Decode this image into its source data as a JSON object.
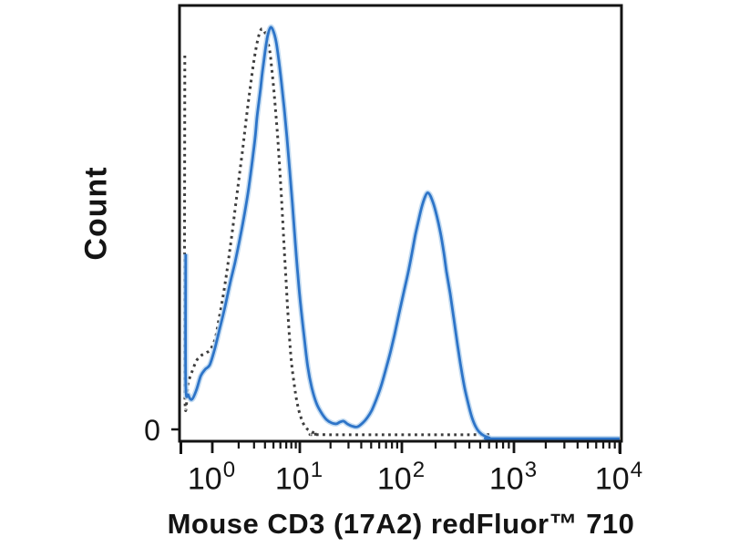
{
  "figure": {
    "y_axis": {
      "label": "Count",
      "zero_tick_label": "0"
    },
    "x_axis": {
      "label": "Mouse CD3 (17A2) redFluor™ 710",
      "tick_base": "10",
      "tick_exponents": [
        "0",
        "1",
        "2",
        "3",
        "4"
      ]
    },
    "colors": {
      "curve_solid": "#2d74c8",
      "curve_solid_halo": "#b9d5ee",
      "curve_dotted": "#3d3d3d",
      "axis": "#141414"
    }
  },
  "chart_data": {
    "type": "line",
    "subtype": "flow-cytometry-histogram-overlay",
    "title": "",
    "xlabel": "Mouse CD3 (17A2) redFluor™ 710",
    "ylabel": "Count",
    "x_scale": "log",
    "x_range": [
      0.45,
      11000
    ],
    "x_ticks": [
      1,
      10,
      100,
      1000,
      10000
    ],
    "y_range_normalized": [
      0,
      1
    ],
    "y_tick_labels": [
      "0"
    ],
    "grid": false,
    "legend": "none",
    "series": [
      {
        "name": "solid_blue_curve",
        "style": "solid",
        "color": "#2d74c8",
        "points": [
          [
            0.487,
            0.43
          ],
          [
            0.487,
            0.134
          ],
          [
            0.523,
            0.106
          ],
          [
            0.576,
            0.096
          ],
          [
            0.649,
            0.117
          ],
          [
            0.732,
            0.15
          ],
          [
            0.825,
            0.165
          ],
          [
            0.931,
            0.175
          ],
          [
            1.05,
            0.207
          ],
          [
            1.18,
            0.248
          ],
          [
            1.37,
            0.301
          ],
          [
            1.58,
            0.359
          ],
          [
            1.82,
            0.411
          ],
          [
            2.1,
            0.472
          ],
          [
            2.37,
            0.53
          ],
          [
            2.61,
            0.582
          ],
          [
            2.87,
            0.645
          ],
          [
            3.09,
            0.697
          ],
          [
            3.24,
            0.743
          ],
          [
            3.4,
            0.777
          ],
          [
            3.57,
            0.812
          ],
          [
            3.74,
            0.848
          ],
          [
            3.93,
            0.881
          ],
          [
            4.12,
            0.91
          ],
          [
            4.32,
            0.933
          ],
          [
            4.64,
            0.95
          ],
          [
            4.99,
            0.941
          ],
          [
            5.36,
            0.917
          ],
          [
            5.75,
            0.875
          ],
          [
            6.18,
            0.822
          ],
          [
            6.63,
            0.764
          ],
          [
            7.13,
            0.697
          ],
          [
            7.65,
            0.624
          ],
          [
            8.22,
            0.547
          ],
          [
            8.83,
            0.463
          ],
          [
            9.48,
            0.384
          ],
          [
            10.2,
            0.311
          ],
          [
            11.1,
            0.234
          ],
          [
            12.0,
            0.169
          ],
          [
            13.1,
            0.123
          ],
          [
            14.5,
            0.088
          ],
          [
            16.1,
            0.067
          ],
          [
            18.2,
            0.05
          ],
          [
            20.5,
            0.042
          ],
          [
            22.8,
            0.04
          ],
          [
            24.7,
            0.044
          ],
          [
            26.9,
            0.046
          ],
          [
            29.2,
            0.04
          ],
          [
            32.3,
            0.035
          ],
          [
            36.5,
            0.033
          ],
          [
            41.3,
            0.042
          ],
          [
            45.8,
            0.054
          ],
          [
            50.7,
            0.071
          ],
          [
            56.2,
            0.096
          ],
          [
            62.2,
            0.125
          ],
          [
            68.9,
            0.161
          ],
          [
            76.4,
            0.2
          ],
          [
            84.6,
            0.244
          ],
          [
            93.7,
            0.292
          ],
          [
            104,
            0.342
          ],
          [
            114,
            0.388
          ],
          [
            123,
            0.432
          ],
          [
            132,
            0.474
          ],
          [
            143,
            0.514
          ],
          [
            151,
            0.539
          ],
          [
            160,
            0.559
          ],
          [
            169,
            0.57
          ],
          [
            179,
            0.564
          ],
          [
            189,
            0.549
          ],
          [
            200,
            0.528
          ],
          [
            212,
            0.501
          ],
          [
            224,
            0.47
          ],
          [
            237,
            0.432
          ],
          [
            250,
            0.39
          ],
          [
            270,
            0.338
          ],
          [
            291,
            0.28
          ],
          [
            314,
            0.221
          ],
          [
            338,
            0.167
          ],
          [
            364,
            0.121
          ],
          [
            393,
            0.084
          ],
          [
            423,
            0.054
          ],
          [
            456,
            0.033
          ],
          [
            491,
            0.021
          ],
          [
            539,
            0.013
          ],
          [
            603,
            0.008
          ],
          [
            698,
            0.006
          ],
          [
            10500,
            0.006
          ]
        ]
      },
      {
        "name": "dotted_gray_curve",
        "style": "dotted",
        "color": "#3d3d3d",
        "points": [
          [
            0.475,
            0.885
          ],
          [
            0.475,
            0.123
          ],
          [
            0.523,
            0.138
          ],
          [
            0.576,
            0.159
          ],
          [
            0.649,
            0.184
          ],
          [
            0.732,
            0.196
          ],
          [
            0.845,
            0.203
          ],
          [
            0.953,
            0.211
          ],
          [
            1.08,
            0.236
          ],
          [
            1.18,
            0.276
          ],
          [
            1.3,
            0.322
          ],
          [
            1.43,
            0.374
          ],
          [
            1.54,
            0.42
          ],
          [
            1.66,
            0.468
          ],
          [
            1.78,
            0.516
          ],
          [
            1.91,
            0.566
          ],
          [
            2.05,
            0.614
          ],
          [
            2.21,
            0.666
          ],
          [
            2.37,
            0.718
          ],
          [
            2.55,
            0.77
          ],
          [
            2.74,
            0.818
          ],
          [
            2.94,
            0.864
          ],
          [
            3.16,
            0.902
          ],
          [
            3.4,
            0.931
          ],
          [
            3.65,
            0.946
          ],
          [
            3.93,
            0.941
          ],
          [
            4.22,
            0.923
          ],
          [
            4.53,
            0.896
          ],
          [
            4.75,
            0.86
          ],
          [
            4.99,
            0.818
          ],
          [
            5.23,
            0.77
          ],
          [
            5.49,
            0.718
          ],
          [
            5.75,
            0.66
          ],
          [
            6.03,
            0.593
          ],
          [
            6.33,
            0.52
          ],
          [
            6.63,
            0.443
          ],
          [
            6.97,
            0.367
          ],
          [
            7.3,
            0.296
          ],
          [
            7.65,
            0.234
          ],
          [
            8.03,
            0.18
          ],
          [
            8.66,
            0.129
          ],
          [
            9.33,
            0.088
          ],
          [
            10.2,
            0.056
          ],
          [
            11.3,
            0.033
          ],
          [
            12.8,
            0.023
          ],
          [
            14.8,
            0.017
          ],
          [
            17.4,
            0.015
          ],
          [
            637,
            0.015
          ]
        ]
      }
    ]
  }
}
